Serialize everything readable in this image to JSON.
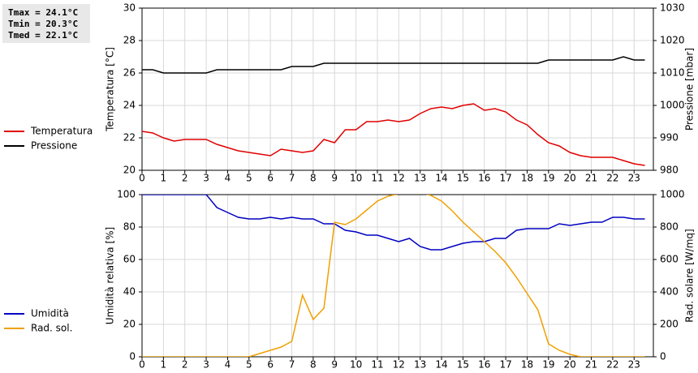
{
  "chart_data": [
    {
      "type": "line",
      "annotations": [
        "Tmax = 24.1°C",
        "Tmin = 20.3°C",
        "Tmed = 22.1°C"
      ],
      "ylabel": "Temperatura [°C]",
      "y2label": "Pressione [mbar]",
      "x": [
        0,
        0.5,
        1,
        1.5,
        2,
        2.5,
        3,
        3.5,
        4,
        4.5,
        5,
        5.5,
        6,
        6.5,
        7,
        7.5,
        8,
        8.5,
        9,
        9.5,
        10,
        10.5,
        11,
        11.5,
        12,
        12.5,
        13,
        13.5,
        14,
        14.5,
        15,
        15.5,
        16,
        16.5,
        17,
        17.5,
        18,
        18.5,
        19,
        19.5,
        20,
        20.5,
        21,
        21.5,
        22,
        22.5,
        23,
        23.5
      ],
      "xlim": [
        0,
        23.9
      ],
      "xticks": [
        0,
        1,
        2,
        3,
        4,
        5,
        6,
        7,
        8,
        9,
        10,
        11,
        12,
        13,
        14,
        15,
        16,
        17,
        18,
        19,
        20,
        21,
        22,
        23
      ],
      "ylim": [
        20,
        30
      ],
      "yticks": [
        20,
        22,
        24,
        26,
        28,
        30
      ],
      "y2lim": [
        980,
        1030
      ],
      "y2ticks": [
        980,
        990,
        1000,
        1010,
        1020,
        1030
      ],
      "grid": true,
      "legend": "left",
      "series": [
        {
          "name": "Temperatura",
          "color": "#e00000",
          "values": [
            22.4,
            22.3,
            22.0,
            21.8,
            21.9,
            21.9,
            21.9,
            21.6,
            21.4,
            21.2,
            21.1,
            21.0,
            20.9,
            21.3,
            21.2,
            21.1,
            21.2,
            21.9,
            21.7,
            22.5,
            22.5,
            23.0,
            23.0,
            23.1,
            23.0,
            23.1,
            23.5,
            23.8,
            23.9,
            23.8,
            24.0,
            24.1,
            23.7,
            23.8,
            23.6,
            23.1,
            22.8,
            22.2,
            21.7,
            21.5,
            21.1,
            20.9,
            20.8,
            20.8,
            20.8,
            20.6,
            20.4,
            20.3
          ]
        },
        {
          "name": "Pressione",
          "color": "#000000",
          "axis": "y2",
          "values": [
            1011,
            1011,
            1010,
            1010,
            1010,
            1010,
            1010,
            1011,
            1011,
            1011,
            1011,
            1011,
            1011,
            1011,
            1012,
            1012,
            1012,
            1013,
            1013,
            1013,
            1013,
            1013,
            1013,
            1013,
            1013,
            1013,
            1013,
            1013,
            1013,
            1013,
            1013,
            1013,
            1013,
            1013,
            1013,
            1013,
            1013,
            1013,
            1014,
            1014,
            1014,
            1014,
            1014,
            1014,
            1014,
            1015,
            1014,
            1014
          ]
        }
      ]
    },
    {
      "type": "line",
      "ylabel": "Umidità relativa [%]",
      "y2label": "Rad. solare [W/mq]",
      "x": [
        0,
        0.5,
        1,
        1.5,
        2,
        2.5,
        3,
        3.5,
        4,
        4.5,
        5,
        5.5,
        6,
        6.5,
        7,
        7.5,
        8,
        8.5,
        9,
        9.5,
        10,
        10.5,
        11,
        11.5,
        12,
        12.5,
        13,
        13.5,
        14,
        14.5,
        15,
        15.5,
        16,
        16.5,
        17,
        17.5,
        18,
        18.5,
        19,
        19.5,
        20,
        20.5,
        21,
        21.5,
        22,
        22.5,
        23,
        23.5
      ],
      "xlim": [
        0,
        23.9
      ],
      "xticks": [
        0,
        1,
        2,
        3,
        4,
        5,
        6,
        7,
        8,
        9,
        10,
        11,
        12,
        13,
        14,
        15,
        16,
        17,
        18,
        19,
        20,
        21,
        22,
        23
      ],
      "ylim": [
        0,
        100
      ],
      "yticks": [
        0,
        20,
        40,
        60,
        80,
        100
      ],
      "y2lim": [
        0,
        1000
      ],
      "y2ticks": [
        0,
        200,
        400,
        600,
        800,
        1000
      ],
      "grid": true,
      "legend": "left",
      "series": [
        {
          "name": "Umidità",
          "color": "#0000c0",
          "values": [
            100,
            100,
            100,
            100,
            100,
            100,
            100,
            92,
            89,
            86,
            85,
            85,
            86,
            85,
            86,
            85,
            85,
            82,
            82,
            78,
            77,
            75,
            75,
            73,
            71,
            73,
            68,
            66,
            66,
            68,
            70,
            71,
            71,
            73,
            73,
            78,
            79,
            79,
            79,
            82,
            81,
            82,
            83,
            83,
            86,
            86,
            85,
            85
          ]
        },
        {
          "name": "Rad. sol.",
          "color": "#f0a000",
          "axis": "y2",
          "values": [
            0,
            0,
            0,
            0,
            0,
            0,
            0,
            0,
            0,
            0,
            0,
            20,
            40,
            60,
            95,
            380,
            230,
            300,
            830,
            815,
            850,
            905,
            960,
            990,
            1005,
            1020,
            1015,
            995,
            960,
            900,
            830,
            770,
            710,
            650,
            580,
            490,
            390,
            290,
            80,
            40,
            15,
            0,
            0,
            0,
            0,
            0,
            0,
            0
          ]
        }
      ]
    }
  ]
}
